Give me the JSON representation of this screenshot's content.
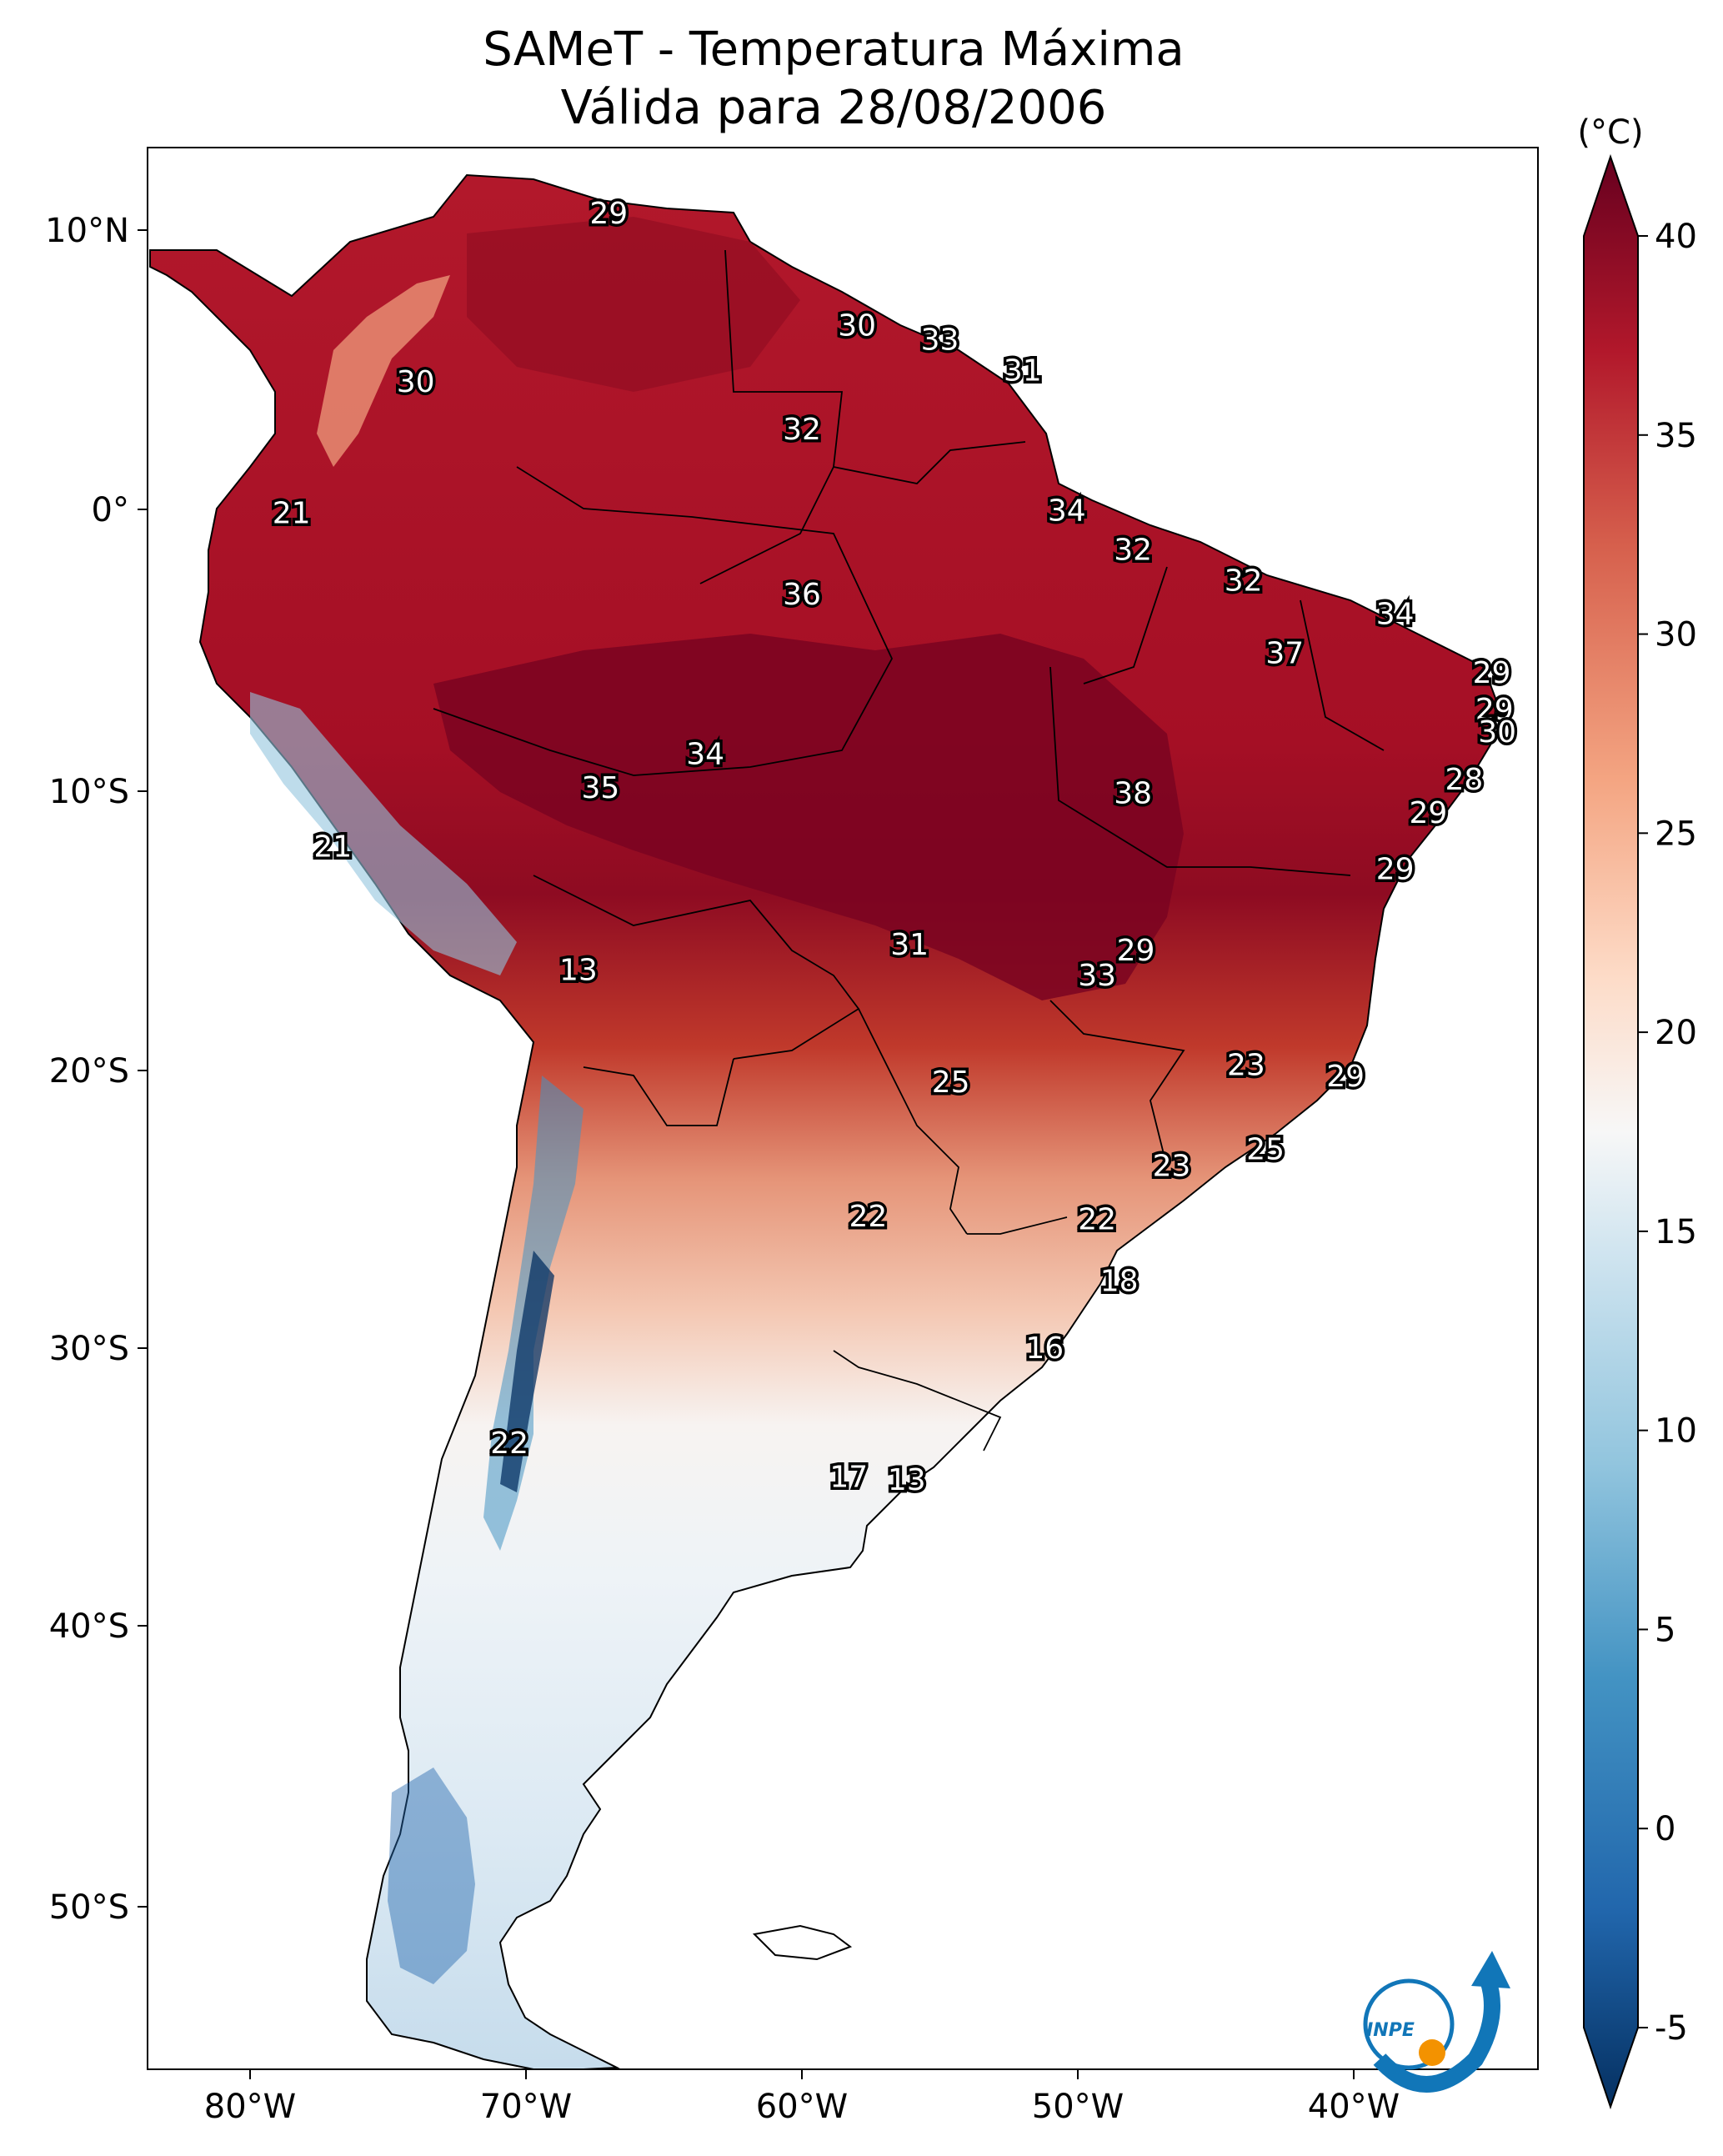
{
  "title": {
    "line1": "SAMeT - Temperatura Máxima",
    "line2": "Válida para 28/08/2006"
  },
  "colorbar": {
    "unit": "(°C)",
    "ticks": [
      "40",
      "35",
      "30",
      "25",
      "20",
      "15",
      "10",
      "5",
      "0",
      "-5"
    ],
    "range_min": -5,
    "range_max": 40,
    "colormap": "RdBu_r"
  },
  "axes": {
    "lon_labels": [
      "80°W",
      "70°W",
      "60°W",
      "50°W",
      "40°W"
    ],
    "lat_labels": [
      "10°N",
      "0°",
      "10°S",
      "20°S",
      "30°S",
      "40°S",
      "50°S"
    ]
  },
  "logo": {
    "text": "INPE",
    "primary": "#1176b8",
    "accent": "#f39200"
  },
  "colors": {
    "hot": "#a51e26",
    "very_hot": "#67001f",
    "warm": "#e7947b",
    "mild": "#f5d9cb",
    "neutral": "#f7f7f7",
    "cool": "#d1e5f0",
    "cold": "#4393c3",
    "very_cold": "#053061"
  },
  "station_labels": [
    {
      "text": "29",
      "lon": -67.0,
      "lat": 10.5
    },
    {
      "text": "30",
      "lon": -74.0,
      "lat": 4.5
    },
    {
      "text": "30",
      "lon": -58.0,
      "lat": 6.5
    },
    {
      "text": "33",
      "lon": -55.0,
      "lat": 6.0
    },
    {
      "text": "31",
      "lon": -52.0,
      "lat": 4.9
    },
    {
      "text": "32",
      "lon": -60.0,
      "lat": 2.8
    },
    {
      "text": "21",
      "lon": -78.5,
      "lat": -0.2
    },
    {
      "text": "34",
      "lon": -50.4,
      "lat": -0.1
    },
    {
      "text": "32",
      "lon": -48.0,
      "lat": -1.5
    },
    {
      "text": "32",
      "lon": -44.0,
      "lat": -2.6
    },
    {
      "text": "36",
      "lon": -60.0,
      "lat": -3.1
    },
    {
      "text": "34",
      "lon": -38.5,
      "lat": -3.8
    },
    {
      "text": "37",
      "lon": -42.5,
      "lat": -5.2
    },
    {
      "text": "29",
      "lon": -35.0,
      "lat": -5.9
    },
    {
      "text": "29",
      "lon": -34.9,
      "lat": -7.2
    },
    {
      "text": "30",
      "lon": -34.8,
      "lat": -8.0
    },
    {
      "text": "34",
      "lon": -63.5,
      "lat": -8.8
    },
    {
      "text": "35",
      "lon": -67.3,
      "lat": -10.0
    },
    {
      "text": "38",
      "lon": -48.0,
      "lat": -10.2
    },
    {
      "text": "28",
      "lon": -36.0,
      "lat": -9.7
    },
    {
      "text": "29",
      "lon": -37.3,
      "lat": -10.9
    },
    {
      "text": "21",
      "lon": -77.0,
      "lat": -12.1
    },
    {
      "text": "29",
      "lon": -38.5,
      "lat": -12.9
    },
    {
      "text": "31",
      "lon": -56.1,
      "lat": -15.6
    },
    {
      "text": "29",
      "lon": -47.9,
      "lat": -15.8
    },
    {
      "text": "13",
      "lon": -68.1,
      "lat": -16.5
    },
    {
      "text": "33",
      "lon": -49.3,
      "lat": -16.7
    },
    {
      "text": "23",
      "lon": -43.9,
      "lat": -19.9
    },
    {
      "text": "25",
      "lon": -54.6,
      "lat": -20.5
    },
    {
      "text": "29",
      "lon": -40.3,
      "lat": -20.3
    },
    {
      "text": "25",
      "lon": -43.2,
      "lat": -22.9
    },
    {
      "text": "23",
      "lon": -46.6,
      "lat": -23.5
    },
    {
      "text": "22",
      "lon": -57.6,
      "lat": -25.3
    },
    {
      "text": "22",
      "lon": -49.3,
      "lat": -25.4
    },
    {
      "text": "18",
      "lon": -48.5,
      "lat": -27.6
    },
    {
      "text": "16",
      "lon": -51.2,
      "lat": -30.0
    },
    {
      "text": "22",
      "lon": -70.6,
      "lat": -33.4
    },
    {
      "text": "17",
      "lon": -58.3,
      "lat": -34.6
    },
    {
      "text": "13",
      "lon": -56.2,
      "lat": -34.7
    }
  ]
}
